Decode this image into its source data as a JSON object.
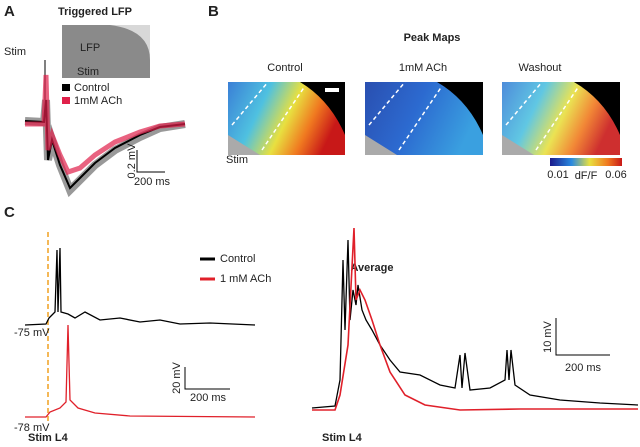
{
  "panel_a": {
    "letter": "A",
    "title": "Triggered LFP",
    "stim_label": "Stim",
    "inset_lfp": "LFP",
    "inset_stim": "Stim",
    "legend": [
      "Control",
      "1mM ACh"
    ],
    "scale_y": "0.2 mV",
    "scale_x": "200 ms"
  },
  "panel_b": {
    "letter": "B",
    "title": "Peak Maps",
    "maps": [
      "Control",
      "1mM ACh",
      "Washout"
    ],
    "stim_label": "Stim",
    "colorbar": {
      "min": "0.01",
      "label": "dF/F",
      "max": "0.06"
    }
  },
  "panel_c": {
    "letter": "C",
    "legend": [
      "Control",
      "1 mM ACh"
    ],
    "left": {
      "v_control": "-75 mV",
      "v_ach": "-78 mV",
      "scale_y": "20 mV",
      "scale_x": "200 ms",
      "stim_label": "Stim L4"
    },
    "right": {
      "title": "Average",
      "scale_y": "10 mV",
      "scale_x": "200 ms",
      "stim_label": "Stim L4"
    }
  }
}
